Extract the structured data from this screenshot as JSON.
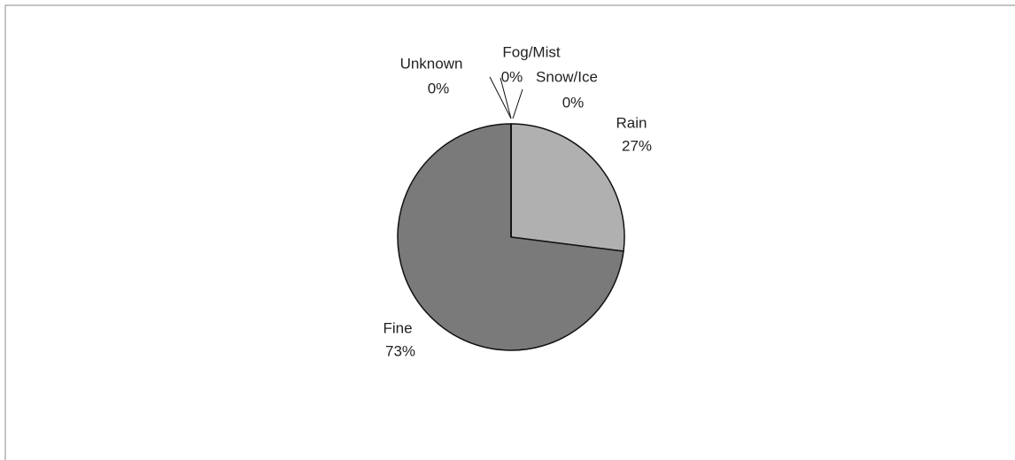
{
  "chart_data": {
    "type": "pie",
    "categories": [
      "Rain",
      "Fine",
      "Unknown",
      "Fog/Mist",
      "Snow/Ice"
    ],
    "values": [
      27,
      73,
      0,
      0,
      0
    ],
    "value_labels": [
      "27%",
      "73%",
      "0%",
      "0%",
      "0%"
    ],
    "colors": [
      "#b0b0b0",
      "#7a7a7a",
      "#7a7a7a",
      "#7a7a7a",
      "#7a7a7a"
    ]
  }
}
